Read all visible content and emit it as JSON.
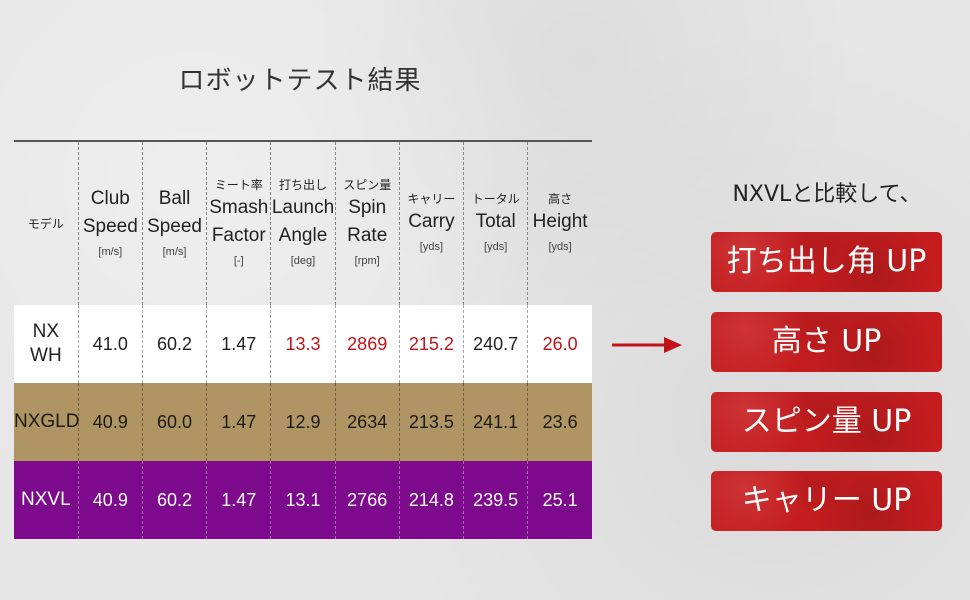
{
  "title": "ロボットテスト結果",
  "colors": {
    "highlight": "#c0141a",
    "row_nxwh": "#ffffff",
    "row_nxgld": "#ae9563",
    "row_nxvl": "#7d0a8d",
    "badge": "#c51d1f"
  },
  "table": {
    "model_header": "モデル",
    "columns": [
      {
        "jp": "",
        "en1": "Club",
        "en2": "Speed",
        "unit": "[m/s]"
      },
      {
        "jp": "",
        "en1": "Ball",
        "en2": "Speed",
        "unit": "[m/s]"
      },
      {
        "jp": "ミート率",
        "en1": "Smash",
        "en2": "Factor",
        "unit": "[-]"
      },
      {
        "jp": "打ち出し",
        "en1": "Launch",
        "en2": "Angle",
        "unit": "[deg]"
      },
      {
        "jp": "スピン量",
        "en1": "Spin",
        "en2": "Rate",
        "unit": "[rpm]"
      },
      {
        "jp": "キャリー",
        "en1": "",
        "en2": "Carry",
        "unit": "[yds]"
      },
      {
        "jp": "トータル",
        "en1": "",
        "en2": "Total",
        "unit": "[yds]"
      },
      {
        "jp": "高さ",
        "en1": "",
        "en2": "Height",
        "unit": "[yds]"
      }
    ],
    "rows": [
      {
        "model_line1": "NX",
        "model_line2": "WH",
        "values": [
          "41.0",
          "60.2",
          "1.47",
          "13.3",
          "2869",
          "215.2",
          "240.7",
          "26.0"
        ]
      },
      {
        "model_line1": "NXGLD",
        "model_line2": "",
        "values": [
          "40.9",
          "60.0",
          "1.47",
          "12.9",
          "2634",
          "213.5",
          "241.1",
          "23.6"
        ]
      },
      {
        "model_line1": "NXVL",
        "model_line2": "",
        "values": [
          "40.9",
          "60.2",
          "1.47",
          "13.1",
          "2766",
          "214.8",
          "239.5",
          "25.1"
        ]
      }
    ]
  },
  "chart_data": {
    "type": "table",
    "title": "ロボットテスト結果",
    "columns": [
      "モデル",
      "Club Speed [m/s]",
      "Ball Speed [m/s]",
      "ミート率 Smash Factor [-]",
      "打ち出し Launch Angle [deg]",
      "スピン量 Spin Rate [rpm]",
      "キャリー Carry [yds]",
      "トータル Total [yds]",
      "高さ Height [yds]"
    ],
    "rows": [
      [
        "NX WH",
        41.0,
        60.2,
        1.47,
        13.3,
        2869,
        215.2,
        240.7,
        26.0
      ],
      [
        "NXGLD",
        40.9,
        60.0,
        1.47,
        12.9,
        2634,
        213.5,
        241.1,
        23.6
      ],
      [
        "NXVL",
        40.9,
        60.2,
        1.47,
        13.1,
        2766,
        214.8,
        239.5,
        25.1
      ]
    ],
    "highlighted_cells": {
      "row": "NX WH",
      "columns": [
        "打ち出し Launch Angle [deg]",
        "スピン量 Spin Rate [rpm]",
        "キャリー Carry [yds]",
        "高さ Height [yds]"
      ]
    }
  },
  "comparison": {
    "label": "NXVLと比較して、",
    "badges": [
      "打ち出し角 UP",
      "高さ UP",
      "スピン量 UP",
      "キャリー UP"
    ]
  }
}
